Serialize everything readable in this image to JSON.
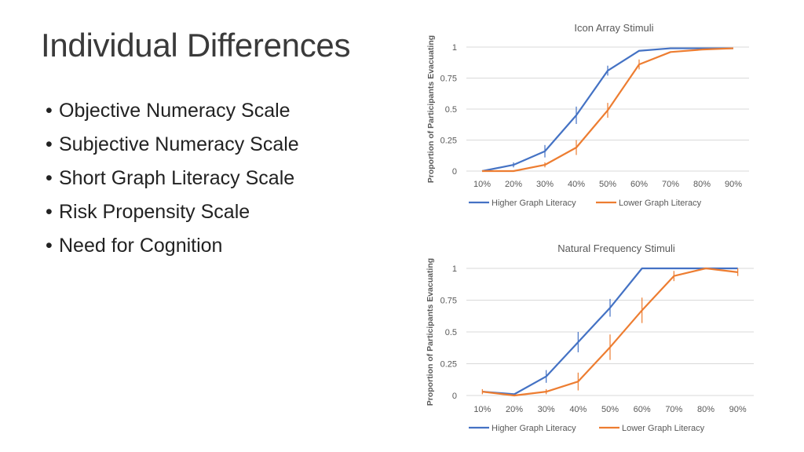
{
  "slide": {
    "title": "Individual Differences",
    "bullet_symbol": "•",
    "bullets": [
      "Objective Numeracy Scale",
      "Subjective Numeracy Scale",
      "Short Graph Literacy Scale",
      "Risk Propensity Scale",
      "Need for Cognition"
    ]
  },
  "colors": {
    "higher": "#4472C4",
    "lower": "#ED7D31",
    "grid": "#d9d9d9",
    "text": "#595959"
  },
  "chart_data": [
    {
      "type": "line",
      "title": "Icon Array Stimuli",
      "xlabel": "",
      "ylabel": "Proportion of Participants Evacuating",
      "categories": [
        "10%",
        "20%",
        "30%",
        "40%",
        "50%",
        "60%",
        "70%",
        "80%",
        "90%"
      ],
      "yticks": [
        "0",
        "0.25",
        "0.5",
        "0.75",
        "1"
      ],
      "ylim": [
        0,
        1
      ],
      "grid": true,
      "legend": "bottom",
      "series": [
        {
          "name": "Higher Graph Literacy",
          "color": "#4472C4",
          "values": [
            0.0,
            0.05,
            0.16,
            0.45,
            0.81,
            0.97,
            0.99,
            0.99,
            0.99
          ],
          "err": [
            0.0,
            0.02,
            0.05,
            0.07,
            0.04,
            0.0,
            0.0,
            0.0,
            0.0
          ]
        },
        {
          "name": "Lower Graph Literacy",
          "color": "#ED7D31",
          "values": [
            0.0,
            0.0,
            0.05,
            0.19,
            0.49,
            0.86,
            0.96,
            0.98,
            0.99
          ],
          "err": [
            0.0,
            0.0,
            0.02,
            0.06,
            0.06,
            0.04,
            0.0,
            0.0,
            0.0
          ]
        }
      ]
    },
    {
      "type": "line",
      "title": "Natural Frequency Stimuli",
      "xlabel": "",
      "ylabel": "Proportion of Participants Evacuating",
      "categories": [
        "10%",
        "20%",
        "30%",
        "40%",
        "50%",
        "60%",
        "70%",
        "80%",
        "90%"
      ],
      "yticks": [
        "0",
        "0.25",
        "0.5",
        "0.75",
        "1"
      ],
      "ylim": [
        0,
        1
      ],
      "grid": true,
      "legend": "bottom",
      "series": [
        {
          "name": "Higher Graph Literacy",
          "color": "#4472C4",
          "values": [
            0.03,
            0.01,
            0.15,
            0.42,
            0.69,
            1.0,
            1.0,
            1.0,
            1.0
          ],
          "err": [
            0.0,
            0.0,
            0.05,
            0.08,
            0.07,
            0.0,
            0.0,
            0.0,
            0.0
          ]
        },
        {
          "name": "Lower Graph Literacy",
          "color": "#ED7D31",
          "values": [
            0.03,
            0.0,
            0.03,
            0.11,
            0.38,
            0.67,
            0.94,
            1.0,
            0.97
          ],
          "err": [
            0.02,
            0.0,
            0.02,
            0.07,
            0.1,
            0.1,
            0.04,
            0.0,
            0.03
          ]
        }
      ]
    }
  ]
}
